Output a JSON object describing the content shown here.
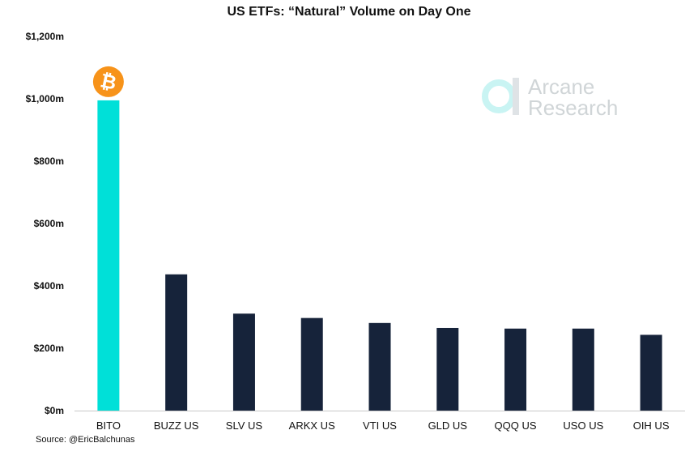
{
  "chart_data": {
    "type": "bar",
    "title": "US ETFs: “Natural” Volume on Day One",
    "categories": [
      "BITO",
      "BUZZ US",
      "SLV US",
      "ARKX US",
      "VTI US",
      "GLD US",
      "QQQ US",
      "USO US",
      "OIH US"
    ],
    "values": [
      995,
      437,
      311,
      297,
      281,
      265,
      263,
      263,
      243
    ],
    "ylim": [
      0,
      1200
    ],
    "yticks": [
      0,
      200,
      400,
      600,
      800,
      1000,
      1200
    ],
    "ytick_labels": [
      "$0m",
      "$200m",
      "$400m",
      "$600m",
      "$800m",
      "$1,000m",
      "$1,200m"
    ],
    "xlabel": "",
    "ylabel": "",
    "grid": false,
    "colors": {
      "highlight": "#00e0d8",
      "default": "#16233a",
      "bitcoin": "#f7931a"
    },
    "highlight_category": "BITO",
    "bitcoin_icon_glyph": "₿"
  },
  "source": "Source: @EricBalchunas",
  "watermark": {
    "line1": "Arcane",
    "line2": "Research",
    "icon": "arcane-logo-icon"
  }
}
